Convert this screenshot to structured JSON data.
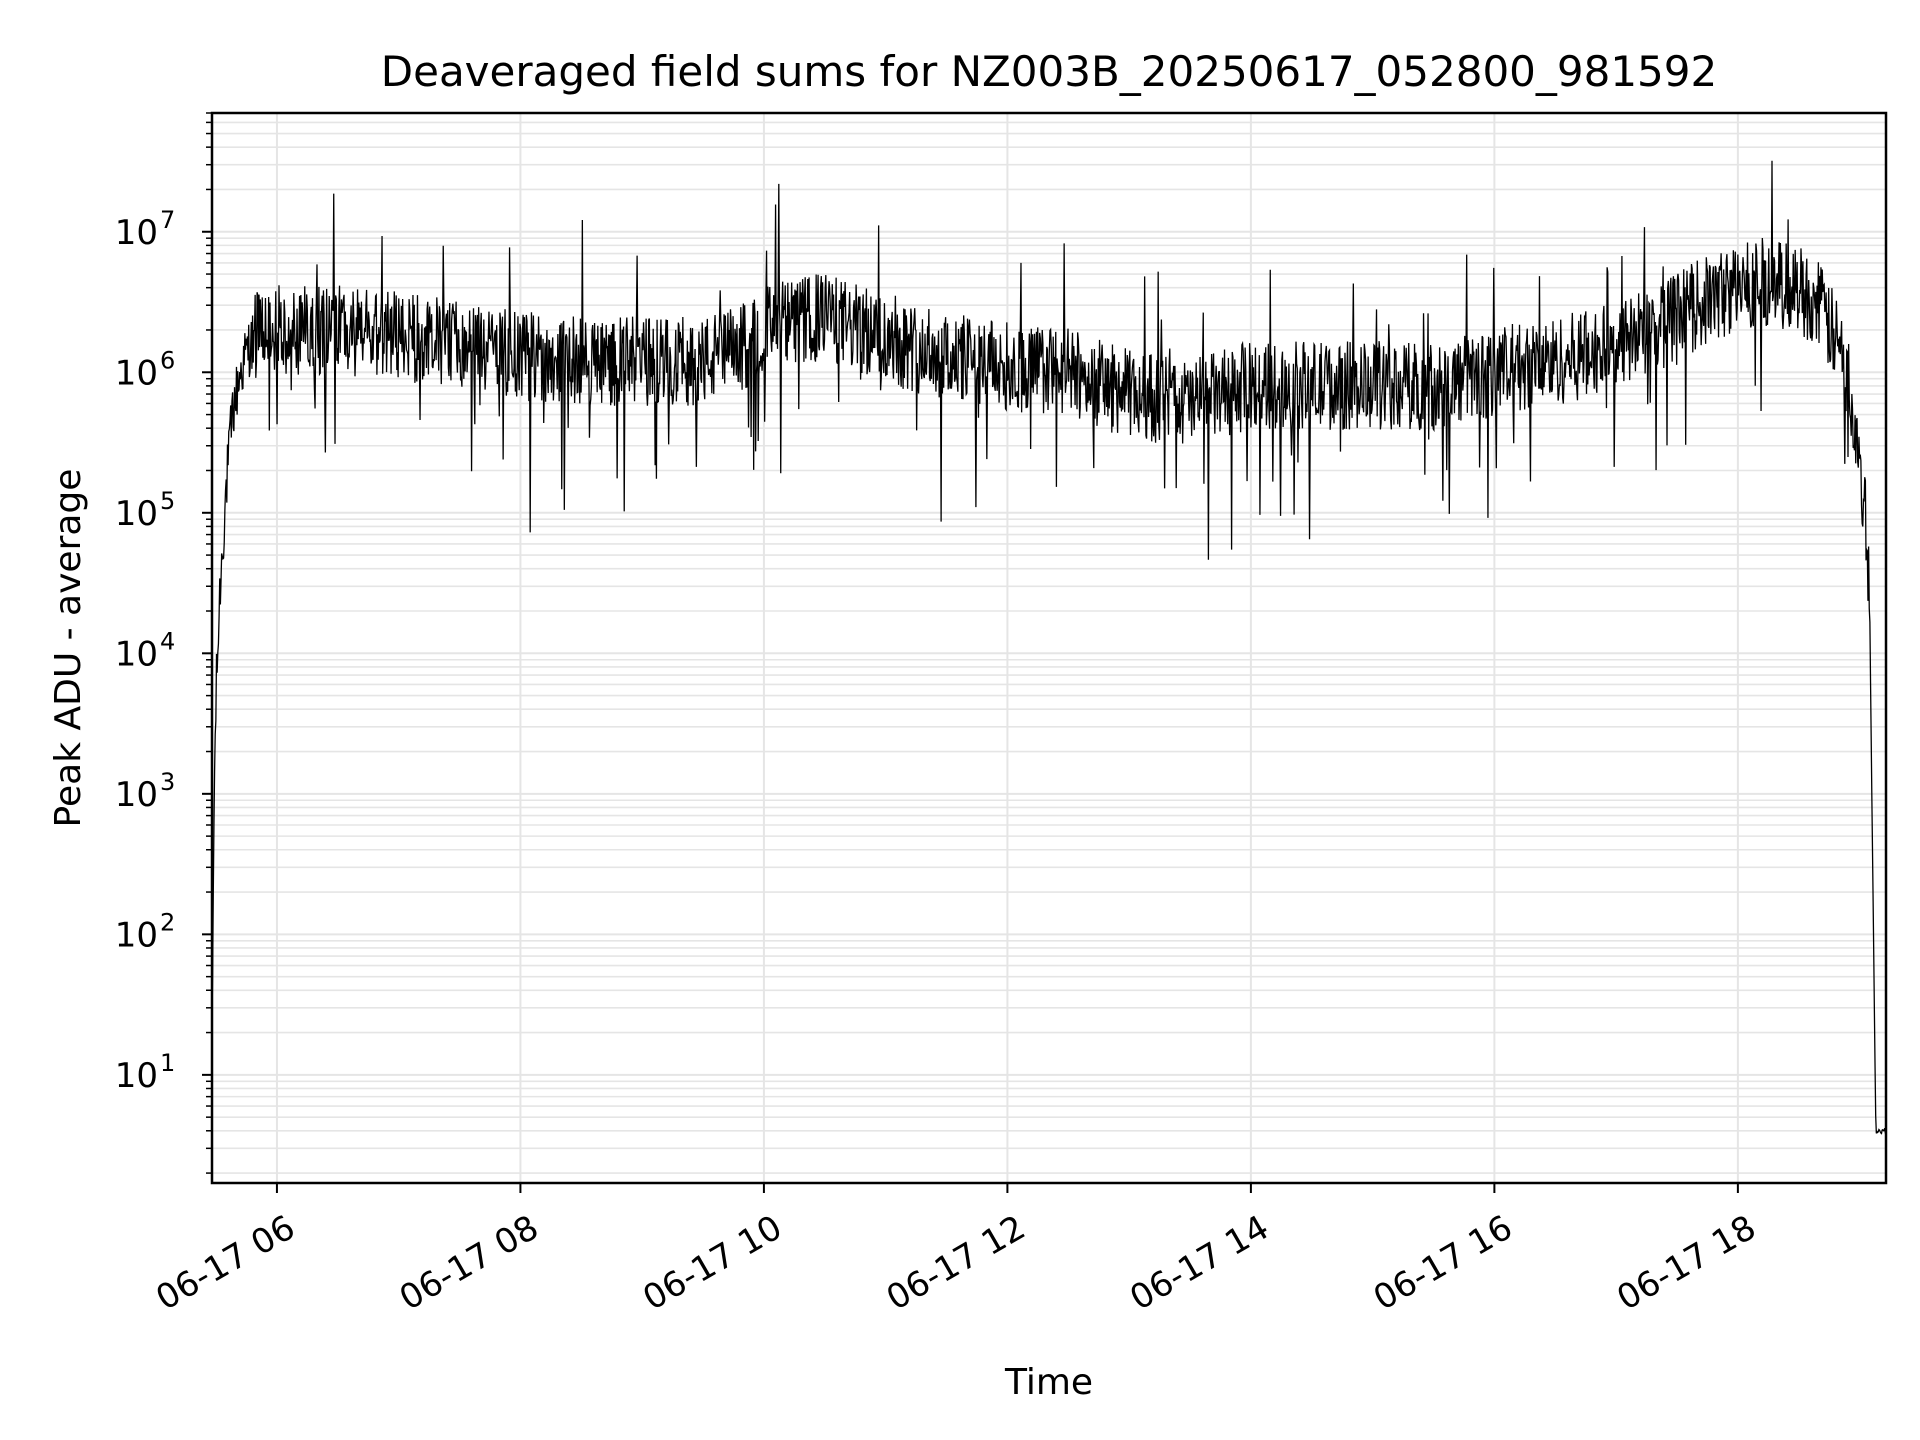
{
  "chart_data": {
    "type": "line",
    "title": "Deaveraged field sums for NZ003B_20250617_052800_981592",
    "xlabel": "Time",
    "ylabel": "Peak ADU - average",
    "yscale": "log",
    "ylim": [
      1.7,
      70000000
    ],
    "xlim": [
      "06-17 05:28",
      "06-17 19:13"
    ],
    "x_ticks": [
      "06-17 06",
      "06-17 08",
      "06-17 10",
      "06-17 12",
      "06-17 14",
      "06-17 16",
      "06-17 18"
    ],
    "y_ticks": [
      "10",
      "100",
      "1000",
      "10000",
      "100000",
      "1000000",
      "10000000"
    ],
    "y_tick_labels": [
      {
        "base": "10",
        "exp": "1"
      },
      {
        "base": "10",
        "exp": "2"
      },
      {
        "base": "10",
        "exp": "3"
      },
      {
        "base": "10",
        "exp": "4"
      },
      {
        "base": "10",
        "exp": "5"
      },
      {
        "base": "10",
        "exp": "6"
      },
      {
        "base": "10",
        "exp": "7"
      }
    ],
    "grid": true,
    "line_color": "#000000",
    "grid_color": "#e5e5e5",
    "series": [
      {
        "x": [
          "06-17 05:28",
          "06-17 05:29",
          "06-17 05:30",
          "06-17 05:32",
          "06-17 05:35",
          "06-17 05:38",
          "06-17 05:42",
          "06-17 05:46",
          "06-17 05:50",
          "06-17 05:55",
          "06-17 06:00",
          "06-17 06:30",
          "06-17 07:00",
          "06-17 07:30",
          "06-17 08:00",
          "06-17 08:30",
          "06-17 09:00",
          "06-17 09:30",
          "06-17 09:50",
          "06-17 10:00",
          "06-17 10:30",
          "06-17 11:00",
          "06-17 11:30",
          "06-17 12:00",
          "06-17 12:30",
          "06-17 13:00",
          "06-17 13:30",
          "06-17 14:00",
          "06-17 14:30",
          "06-17 15:00",
          "06-17 15:30",
          "06-17 16:00",
          "06-17 16:30",
          "06-17 17:00",
          "06-17 17:30",
          "06-17 17:40",
          "06-17 18:00",
          "06-17 18:10",
          "06-17 18:30",
          "06-17 18:40",
          "06-17 18:50",
          "06-17 18:55",
          "06-17 19:00",
          "06-17 19:03",
          "06-17 19:05",
          "06-17 19:06",
          "06-17 19:08",
          "06-17 19:13"
        ],
        "y": [
          15,
          800,
          5000,
          30000,
          150000,
          500000,
          1000000,
          1500000,
          1800000,
          2000000,
          2000000,
          2000000,
          1800000,
          1600000,
          1300000,
          1200000,
          1200000,
          1200000,
          1500000,
          2000000,
          2500000,
          1700000,
          1300000,
          1100000,
          1000000,
          700000,
          600000,
          800000,
          800000,
          800000,
          800000,
          1000000,
          1200000,
          1500000,
          2500000,
          3000000,
          4000000,
          4500000,
          4000000,
          3000000,
          1500000,
          800000,
          300000,
          80000,
          20000,
          1000,
          4,
          4
        ]
      }
    ]
  }
}
